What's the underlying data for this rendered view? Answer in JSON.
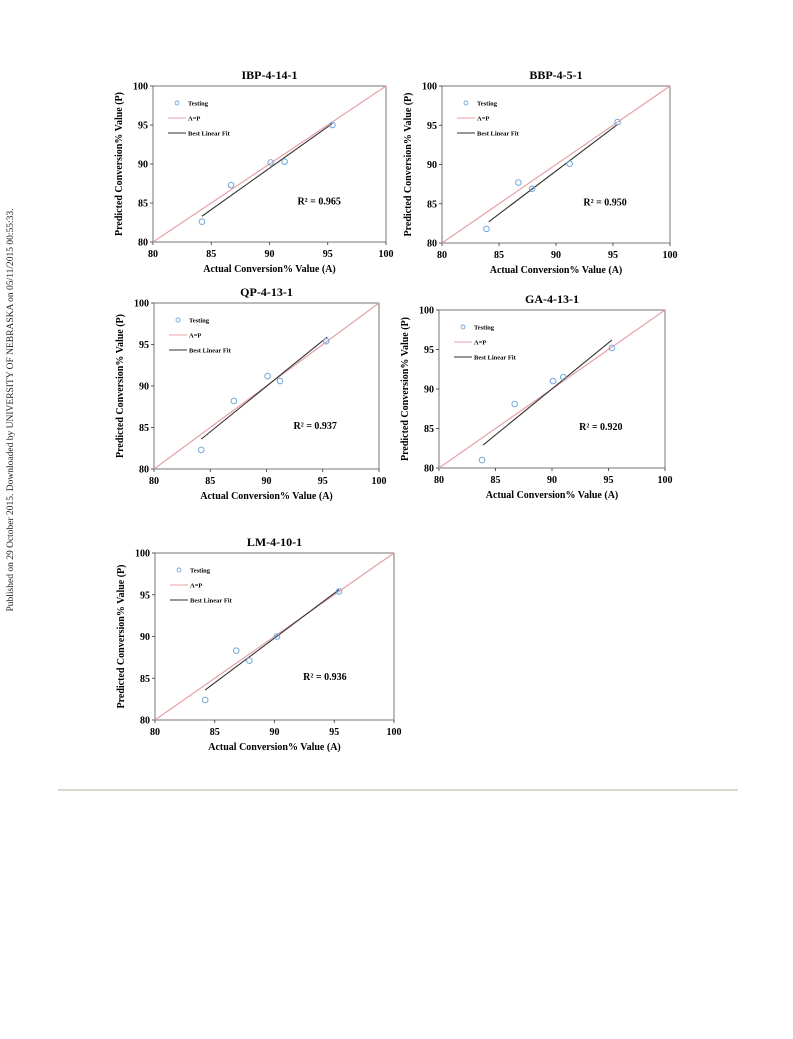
{
  "side_note": "Published on 29 October 2015. Downloaded by UNIVERSITY OF NEBRASKA on 05/11/2015 00:55:33.",
  "chart_data": [
    {
      "type": "scatter",
      "title": "IBP-4-14-1",
      "xlabel": "Actual Conversion% Value (A)",
      "ylabel": "Predicted Conversion% Value (P)",
      "xlim": [
        80,
        100
      ],
      "ylim": [
        80,
        100
      ],
      "xticks": [
        "80",
        "85",
        "90",
        "95",
        "100"
      ],
      "yticks": [
        "80",
        "85",
        "90",
        "95",
        "100"
      ],
      "legend": [
        "Testing",
        "A=P",
        "Best Linear Fit"
      ],
      "legend_position": "top-left",
      "annotation": "R² = 0.965",
      "points": [
        [
          84.2,
          82.6
        ],
        [
          86.7,
          87.3
        ],
        [
          90.1,
          90.2
        ],
        [
          91.3,
          90.3
        ],
        [
          95.4,
          95.0
        ]
      ],
      "fit": [
        [
          84.2,
          83.3
        ],
        [
          95.4,
          95.2
        ]
      ],
      "colors": {
        "points": "#6fa8dc",
        "identity": "#e8a0a5",
        "fit": "#333333"
      }
    },
    {
      "type": "scatter",
      "title": "BBP-4-5-1",
      "xlabel": "Actual Conversion% Value (A)",
      "ylabel": "Predicted Conversion% Value (P)",
      "xlim": [
        80,
        100
      ],
      "ylim": [
        80,
        100
      ],
      "xticks": [
        "80",
        "85",
        "90",
        "95",
        "100"
      ],
      "yticks": [
        "80",
        "85",
        "90",
        "95",
        "100"
      ],
      "legend": [
        "Testing",
        "A=P",
        "Best Linear Fit"
      ],
      "legend_position": "top-left",
      "annotation": "R² = 0.950",
      "points": [
        [
          83.9,
          81.8
        ],
        [
          86.7,
          87.7
        ],
        [
          87.9,
          86.9
        ],
        [
          91.2,
          90.1
        ],
        [
          95.4,
          95.4
        ]
      ],
      "fit": [
        [
          84.1,
          82.7
        ],
        [
          95.4,
          95.1
        ]
      ],
      "colors": {
        "points": "#6fa8dc",
        "identity": "#e8a0a5",
        "fit": "#333333"
      }
    },
    {
      "type": "scatter",
      "title": "QP-4-13-1",
      "xlabel": "Actual Conversion% Value (A)",
      "ylabel": "Predicted Conversion% Value (P)",
      "xlim": [
        80,
        100
      ],
      "ylim": [
        80,
        100
      ],
      "xticks": [
        "80",
        "85",
        "90",
        "95",
        "100"
      ],
      "yticks": [
        "80",
        "85",
        "90",
        "95",
        "100"
      ],
      "legend": [
        "Testing",
        "A=P",
        "Best Linear Fit"
      ],
      "legend_position": "top-left",
      "annotation": "R² = 0.937",
      "points": [
        [
          84.2,
          82.3
        ],
        [
          87.1,
          88.2
        ],
        [
          90.1,
          91.2
        ],
        [
          91.2,
          90.6
        ],
        [
          95.3,
          95.4
        ]
      ],
      "fit": [
        [
          84.2,
          83.6
        ],
        [
          95.4,
          95.9
        ]
      ],
      "colors": {
        "points": "#6fa8dc",
        "identity": "#e8a0a5",
        "fit": "#333333"
      }
    },
    {
      "type": "scatter",
      "title": "GA-4-13-1",
      "xlabel": "Actual Conversion% Value (A)",
      "ylabel": "Predicted Conversion% Value (P)",
      "xlim": [
        80,
        100
      ],
      "ylim": [
        80,
        100
      ],
      "xticks": [
        "80",
        "85",
        "90",
        "95",
        "100"
      ],
      "yticks": [
        "80",
        "85",
        "90",
        "95",
        "100"
      ],
      "legend": [
        "Testing",
        "A=P",
        "Best Linear Fit"
      ],
      "legend_position": "top-left",
      "annotation": "R² = 0.920",
      "points": [
        [
          83.8,
          81.0
        ],
        [
          86.7,
          88.1
        ],
        [
          90.1,
          91.0
        ],
        [
          91.0,
          91.5
        ],
        [
          95.3,
          95.2
        ]
      ],
      "fit": [
        [
          83.9,
          82.9
        ],
        [
          95.3,
          96.2
        ]
      ],
      "colors": {
        "points": "#6fa8dc",
        "identity": "#e8a0a5",
        "fit": "#333333"
      }
    },
    {
      "type": "scatter",
      "title": "LM-4-10-1",
      "xlabel": "Actual Conversion% Value (A)",
      "ylabel": "Predicted Conversion% Value (P)",
      "xlim": [
        80,
        100
      ],
      "ylim": [
        80,
        100
      ],
      "xticks": [
        "80",
        "85",
        "90",
        "95",
        "100"
      ],
      "yticks": [
        "80",
        "85",
        "90",
        "95",
        "100"
      ],
      "legend": [
        "Testing",
        "A=P",
        "Best Linear Fit"
      ],
      "legend_position": "top-left",
      "annotation": "R² = 0.936",
      "points": [
        [
          84.2,
          82.4
        ],
        [
          86.8,
          88.3
        ],
        [
          87.9,
          87.1
        ],
        [
          90.2,
          90.0
        ],
        [
          95.4,
          95.4
        ]
      ],
      "fit": [
        [
          84.2,
          83.6
        ],
        [
          95.4,
          95.6
        ]
      ],
      "colors": {
        "points": "#6fa8dc",
        "identity": "#e8a0a5",
        "fit": "#333333"
      }
    }
  ]
}
